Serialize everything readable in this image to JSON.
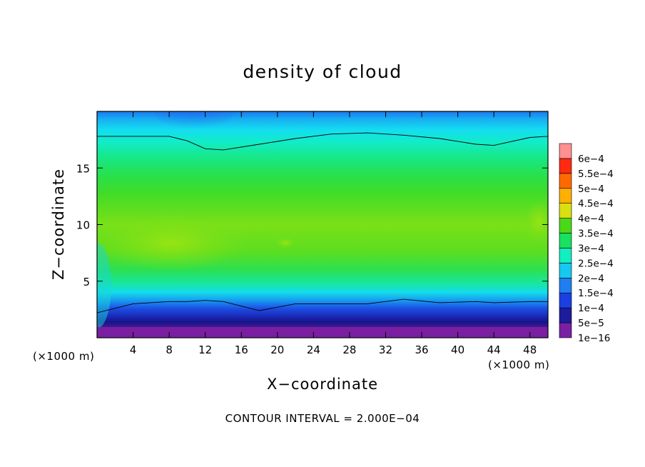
{
  "chart_data": {
    "type": "heatmap",
    "title": "density of cloud",
    "xlabel": "X−coordinate",
    "ylabel": "Z−coordinate",
    "x_unit": "(×1000 m)",
    "y_unit": "(×1000 m)",
    "footnote": "CONTOUR INTERVAL = 2.000E−04",
    "xlim": [
      0,
      50
    ],
    "ylim": [
      0,
      20
    ],
    "x_ticks": [
      4,
      8,
      12,
      16,
      20,
      24,
      28,
      32,
      36,
      40,
      44,
      48
    ],
    "y_ticks": [
      5,
      10,
      15
    ],
    "colorbar": {
      "levels": [
        "1e−16",
        "5e−5",
        "1e−4",
        "1.5e−4",
        "2e−4",
        "2.5e−4",
        "3e−4",
        "3.5e−4",
        "4e−4",
        "4.5e−4",
        "5e−4",
        "5.5e−4",
        "6e−4"
      ],
      "colors": [
        "#7a1fa2",
        "#1c1c9c",
        "#1b3fe0",
        "#1e7ff0",
        "#16c8f0",
        "#12eec0",
        "#18e060",
        "#4ad818",
        "#d8e010",
        "#ffb000",
        "#ff6a00",
        "#ff2a10",
        "#ff9090"
      ]
    },
    "contour_2e-4_z_at_x": {
      "x": [
        0,
        4,
        8,
        10,
        12,
        14,
        18,
        22,
        26,
        30,
        34,
        38,
        42,
        44,
        48,
        50
      ],
      "top": [
        17.8,
        17.8,
        17.8,
        17.4,
        16.7,
        16.6,
        17.1,
        17.6,
        18.0,
        18.1,
        17.9,
        17.6,
        17.1,
        17.0,
        17.7,
        17.8
      ],
      "bottom": [
        2.2,
        3.0,
        3.2,
        3.2,
        3.3,
        3.2,
        2.4,
        3.0,
        3.0,
        3.0,
        3.4,
        3.1,
        3.2,
        3.1,
        3.2,
        3.2
      ]
    },
    "max_region": {
      "x_range": [
        1,
        16
      ],
      "z_range": [
        6,
        10
      ],
      "approx_value": "3.5e−4"
    }
  }
}
